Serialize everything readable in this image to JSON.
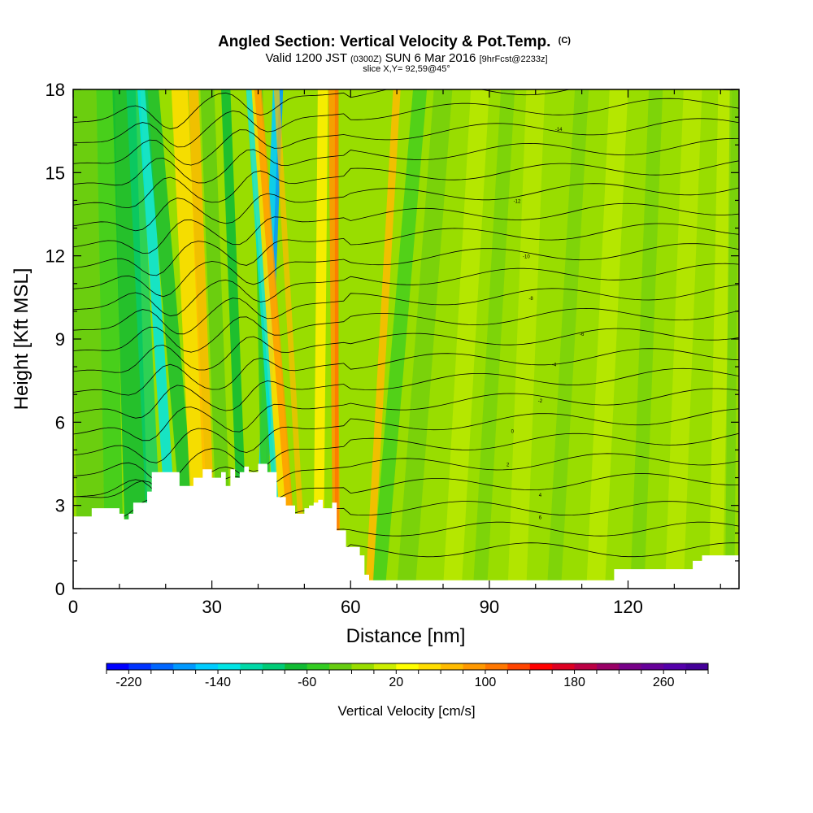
{
  "chart_data": {
    "type": "heatmap",
    "title": "Angled Section: Vertical Velocity & Pot.Temp.",
    "title_unit": "(C)",
    "subtitle": {
      "valid": "Valid 1200 JST",
      "utc": "(0300Z)",
      "date": "SUN 6 Mar 2016",
      "fcst": "[9hrFcst@2233z]"
    },
    "slice_label": "slice X,Y= 92,59@45°",
    "xlabel": "Distance [nm]",
    "ylabel": "Height [Kft MSL]",
    "xlim": [
      0,
      144
    ],
    "ylim": [
      0,
      18
    ],
    "x_ticks": [
      "0",
      "30",
      "60",
      "90",
      "120"
    ],
    "x_tick_values": [
      0,
      30,
      60,
      90,
      120
    ],
    "y_ticks": [
      "0",
      "3",
      "6",
      "9",
      "12",
      "15",
      "18"
    ],
    "y_tick_values": [
      0,
      3,
      6,
      9,
      12,
      15,
      18
    ],
    "colorbar": {
      "label": "Vertical Velocity [cm/s]",
      "min": -240,
      "max": 300,
      "step": 20,
      "tick_labels": [
        "-220",
        "-140",
        "-60",
        "20",
        "100",
        "180",
        "260"
      ],
      "tick_values": [
        -220,
        -140,
        -60,
        20,
        100,
        180,
        260
      ],
      "colors": [
        "#0000ff",
        "#0033ff",
        "#0066ff",
        "#0099ff",
        "#00ccff",
        "#00e5e5",
        "#00d9a8",
        "#00cc77",
        "#11bb33",
        "#33cc22",
        "#66cc11",
        "#99dd00",
        "#ccee00",
        "#ffff00",
        "#ffdd00",
        "#ffbb00",
        "#ff9900",
        "#ff7700",
        "#ff4400",
        "#ff0000",
        "#dd0022",
        "#bb0044",
        "#990066",
        "#770088",
        "#660099",
        "#5500aa",
        "#440099"
      ]
    },
    "terrain_profile": {
      "x": [
        0,
        3,
        4,
        7,
        10,
        11,
        12,
        13,
        16,
        17,
        20,
        23,
        25,
        26,
        27,
        28,
        29,
        30,
        31,
        32,
        33,
        34,
        35,
        36,
        37,
        38,
        39,
        40,
        41,
        42,
        43,
        44,
        45,
        46,
        47,
        48,
        49,
        50,
        51,
        52,
        53,
        54,
        55,
        56,
        57,
        58,
        59,
        60,
        61,
        62,
        63,
        64,
        65,
        66,
        67,
        68,
        69,
        70,
        72,
        80,
        90,
        100,
        110,
        112,
        113,
        117,
        119,
        125,
        128,
        132,
        134,
        136,
        140,
        144
      ],
      "height_kft": [
        2.6,
        2.6,
        2.9,
        2.9,
        2.7,
        2.5,
        2.7,
        3.1,
        3.5,
        4.2,
        4.2,
        3.7,
        3.7,
        4.0,
        4.0,
        4.3,
        4.3,
        4.0,
        4.0,
        4.2,
        3.7,
        4.3,
        4.0,
        4.2,
        4.4,
        4.2,
        4.2,
        4.5,
        4.5,
        4.2,
        4.2,
        3.3,
        3.3,
        3.0,
        3.0,
        2.7,
        2.7,
        2.9,
        3.0,
        3.1,
        3.2,
        2.9,
        2.9,
        3.1,
        2.1,
        2.1,
        1.5,
        1.5,
        1.5,
        1.2,
        0.5,
        0.3,
        0.3,
        0.3,
        0.3,
        0.3,
        0.3,
        0.3,
        0.3,
        0.3,
        0.3,
        0.3,
        0.3,
        0.3,
        0.3,
        0.7,
        0.7,
        0.7,
        0.7,
        0.7,
        1.0,
        1.2,
        1.2,
        1.2
      ]
    },
    "isentrope_labels": [
      "-24",
      "-22",
      "-20",
      "-18",
      "-16",
      "-14",
      "-12",
      "-10",
      "-8",
      "-6",
      "-4",
      "-2",
      "0",
      "2",
      "4",
      "6",
      "8",
      "10",
      "12",
      "14",
      "16",
      "18"
    ]
  }
}
